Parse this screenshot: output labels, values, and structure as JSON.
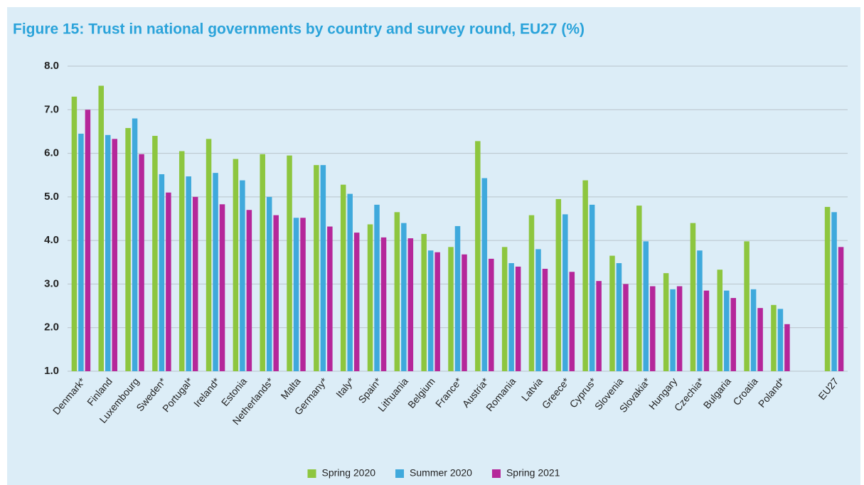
{
  "chart_data": {
    "type": "bar",
    "title": "Figure 15: Trust in national governments by country and survey round, EU27 (%)",
    "categories": [
      "Denmark*",
      "Finland",
      "Luxembourg",
      "Sweden*",
      "Portugal*",
      "Ireland*",
      "Estonia",
      "Netherlands*",
      "Malta",
      "Germany*",
      "Italy*",
      "Spain*",
      "Lithuania",
      "Belgium",
      "France*",
      "Austria*",
      "Romania",
      "Latvia",
      "Greece*",
      "Cyprus*",
      "Slovenia",
      "Slovakia*",
      "Hungary",
      "Czechia*",
      "Bulgaria",
      "Croatia",
      "Poland*",
      null,
      "EU27"
    ],
    "series": [
      {
        "name": "Spring 2020",
        "color": "#8dc63f",
        "values": [
          7.3,
          7.55,
          6.58,
          6.4,
          6.05,
          6.33,
          5.87,
          5.98,
          5.95,
          5.73,
          5.28,
          4.37,
          4.65,
          4.15,
          3.85,
          6.28,
          3.85,
          4.58,
          4.95,
          5.38,
          3.65,
          4.8,
          3.25,
          4.4,
          3.33,
          3.98,
          2.52,
          null,
          4.77
        ]
      },
      {
        "name": "Summer 2020",
        "color": "#3fa9dc",
        "values": [
          6.45,
          6.42,
          6.8,
          5.52,
          5.47,
          5.55,
          5.38,
          5.0,
          4.52,
          5.73,
          5.07,
          4.82,
          4.4,
          3.77,
          4.33,
          5.43,
          3.48,
          3.8,
          4.6,
          4.82,
          3.48,
          3.98,
          2.88,
          3.77,
          2.85,
          2.88,
          2.43,
          null,
          4.65
        ]
      },
      {
        "name": "Spring 2021",
        "color": "#b5279a",
        "values": [
          7.0,
          6.33,
          5.98,
          5.1,
          5.0,
          4.83,
          4.7,
          4.58,
          4.52,
          4.32,
          4.18,
          4.07,
          4.05,
          3.73,
          3.68,
          3.58,
          3.4,
          3.35,
          3.28,
          3.07,
          3.0,
          2.95,
          2.95,
          2.85,
          2.68,
          2.45,
          2.08,
          null,
          3.85
        ]
      }
    ],
    "ylim": [
      1,
      8
    ],
    "yticks": [
      {
        "value": 1,
        "label": "1.0"
      },
      {
        "value": 2,
        "label": "2.0"
      },
      {
        "value": 3,
        "label": "3.0"
      },
      {
        "value": 4,
        "label": "4.0"
      },
      {
        "value": 5,
        "label": "5.0"
      },
      {
        "value": 6,
        "label": "6.0"
      },
      {
        "value": 7,
        "label": "7.0"
      },
      {
        "value": 8,
        "label": "8.0"
      }
    ],
    "grid": true,
    "legend": "bottom"
  }
}
